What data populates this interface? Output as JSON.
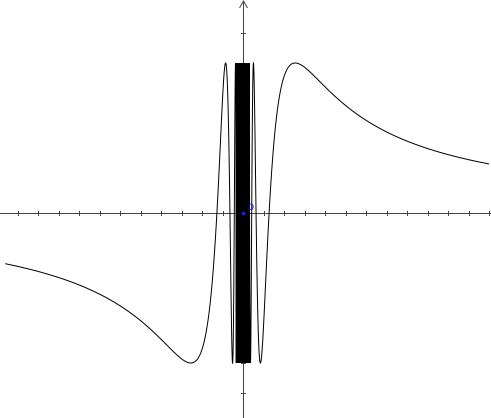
{
  "chart_data": {
    "type": "line",
    "title": "",
    "xlabel": "",
    "ylabel": "",
    "xlim": [
      -2.9,
      3.0
    ],
    "ylim": [
      -1.25,
      1.25
    ],
    "grid": false,
    "legend": "none",
    "series": [
      {
        "function": "sin(1/x)",
        "x_domain": [
          -2.9,
          3.0
        ],
        "samples": [
          {
            "x": -2.9,
            "y": -0.33
          },
          {
            "x": -1.0,
            "y": -0.84
          },
          {
            "x": -0.64,
            "y": -1.0
          },
          {
            "x": -0.318,
            "y": 0.0
          },
          {
            "x": -0.212,
            "y": 1.0
          },
          {
            "x": -0.159,
            "y": 0.0
          },
          {
            "x": -0.127,
            "y": -1.0
          },
          {
            "x": 0.127,
            "y": 1.0
          },
          {
            "x": 0.159,
            "y": 0.0
          },
          {
            "x": 0.212,
            "y": -1.0
          },
          {
            "x": 0.318,
            "y": 0.0
          },
          {
            "x": 0.64,
            "y": 1.0
          },
          {
            "x": 1.0,
            "y": 0.84
          },
          {
            "x": 3.0,
            "y": 0.33
          }
        ]
      }
    ],
    "origin_label": "O",
    "colors": {
      "curve": "#000000",
      "axes": "#444444",
      "origin": "#1a1aff"
    }
  }
}
